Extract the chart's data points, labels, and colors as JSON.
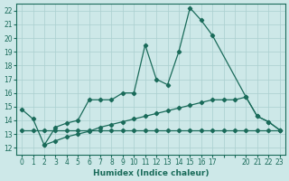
{
  "xlabel": "Humidex (Indice chaleur)",
  "bg_color": "#cde8e8",
  "grid_color": "#aacfcf",
  "line_color": "#1a6b5a",
  "xlim": [
    -0.5,
    23.5
  ],
  "ylim": [
    11.5,
    22.5
  ],
  "xticks": [
    0,
    1,
    2,
    3,
    4,
    5,
    6,
    7,
    8,
    9,
    10,
    11,
    12,
    13,
    14,
    15,
    16,
    17,
    20,
    21,
    22,
    23
  ],
  "yticks": [
    12,
    13,
    14,
    15,
    16,
    17,
    18,
    19,
    20,
    21,
    22
  ],
  "series1_x": [
    0,
    1,
    2,
    3,
    4,
    5,
    6,
    7,
    8,
    9,
    10,
    11,
    12,
    13,
    14,
    15,
    16,
    17,
    20,
    21,
    22,
    23
  ],
  "series1_y": [
    14.8,
    14.1,
    12.2,
    13.5,
    13.8,
    14.0,
    15.5,
    15.5,
    15.5,
    16.0,
    16.0,
    19.5,
    17.0,
    16.6,
    19.0,
    22.2,
    21.3,
    20.2,
    15.7,
    14.3,
    13.9,
    13.3
  ],
  "series2_x": [
    0,
    1,
    2,
    3,
    4,
    5,
    6,
    7,
    8,
    9,
    10,
    11,
    12,
    13,
    14,
    15,
    16,
    17,
    18,
    19,
    20,
    21,
    22,
    23
  ],
  "series2_y": [
    13.3,
    13.3,
    13.3,
    13.3,
    13.3,
    13.3,
    13.3,
    13.3,
    13.3,
    13.3,
    13.3,
    13.3,
    13.3,
    13.3,
    13.3,
    13.3,
    13.3,
    13.3,
    13.3,
    13.3,
    13.3,
    13.3,
    13.3,
    13.3
  ],
  "series3_x": [
    2,
    3,
    4,
    5,
    6,
    7,
    8,
    9,
    10,
    11,
    12,
    13,
    14,
    15,
    16,
    17,
    18,
    19,
    20,
    21,
    22,
    23
  ],
  "series3_y": [
    12.2,
    12.5,
    12.8,
    13.0,
    13.2,
    13.5,
    13.7,
    13.9,
    14.1,
    14.3,
    14.5,
    14.7,
    14.9,
    15.1,
    15.3,
    15.5,
    15.5,
    15.5,
    15.7,
    14.3,
    13.9,
    13.3
  ]
}
